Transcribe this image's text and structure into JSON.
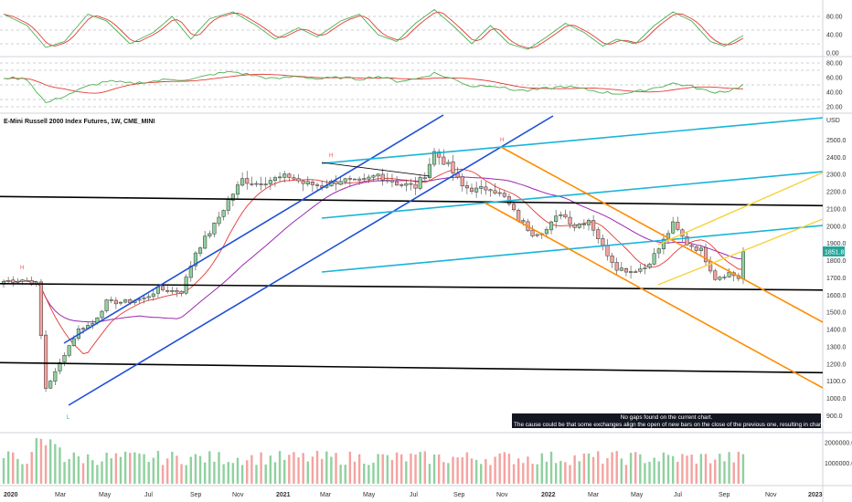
{
  "title": "E-Mini Russell 2000 Index Futures, 1W, CME_MINI",
  "currency": "USD",
  "last_price": "1851.8",
  "notice": {
    "line1": "No gaps found on the current chart.",
    "line2": "The cause could be that some exchanges align the open of new bars on the close of the previous one, resulting in charts with no gaps."
  },
  "annotations": [
    "H",
    "H",
    "H",
    "L"
  ],
  "colors": {
    "up": "#26a69a",
    "up_bar": "#8fd19e",
    "down": "#ef5350",
    "down_bar": "#f4a3a0",
    "ma_fast": "#e53935",
    "ma_slow": "#9c27b0",
    "channel_up": "#1e4fd8",
    "channel_down": "#ff8c00",
    "trend_cyan": "#18b4d8",
    "wedge_yellow": "#f6d33c",
    "horizontal": "#000000",
    "stoch_k": "#4caf50",
    "stoch_d": "#e53935"
  },
  "chart_data": [
    {
      "type": "candlestick",
      "x_tick_labels": [
        "2020",
        "Mar",
        "May",
        "Jul",
        "Sep",
        "Nov",
        "2021",
        "Mar",
        "May",
        "Jul",
        "Sep",
        "Nov",
        "2022",
        "Mar",
        "May",
        "Jul",
        "Sep",
        "Nov",
        "2023"
      ],
      "y_tick_labels": [
        "2500.0",
        "2400.0",
        "2300.0",
        "2200.0",
        "2100.0",
        "2000.0",
        "1900.0",
        "1800.0",
        "1700.0",
        "1600.0",
        "1500.0",
        "1400.0",
        "1300.0",
        "1200.0",
        "1100.0",
        "1000.0",
        "900.0"
      ],
      "ylim": [
        865,
        2545
      ],
      "close_anchors": [
        [
          0,
          1680
        ],
        [
          4,
          1690
        ],
        [
          7,
          1665
        ],
        [
          9,
          1060
        ],
        [
          11,
          1150
        ],
        [
          13,
          1260
        ],
        [
          16,
          1400
        ],
        [
          19,
          1435
        ],
        [
          22,
          1560
        ],
        [
          26,
          1560
        ],
        [
          30,
          1580
        ],
        [
          33,
          1635
        ],
        [
          38,
          1620
        ],
        [
          41,
          1850
        ],
        [
          45,
          2005
        ],
        [
          48,
          2150
        ],
        [
          51,
          2270
        ],
        [
          54,
          2250
        ],
        [
          57,
          2270
        ],
        [
          61,
          2290
        ],
        [
          64,
          2250
        ],
        [
          68,
          2235
        ],
        [
          72,
          2270
        ],
        [
          76,
          2250
        ],
        [
          80,
          2300
        ],
        [
          84,
          2250
        ],
        [
          88,
          2230
        ],
        [
          90,
          2300
        ],
        [
          92,
          2430
        ],
        [
          95,
          2350
        ],
        [
          98,
          2230
        ],
        [
          101,
          2210
        ],
        [
          104,
          2225
        ],
        [
          107,
          2165
        ],
        [
          110,
          2040
        ],
        [
          113,
          1960
        ],
        [
          116,
          1980
        ],
        [
          119,
          2080
        ],
        [
          122,
          2000
        ],
        [
          125,
          2040
        ],
        [
          128,
          1880
        ],
        [
          131,
          1760
        ],
        [
          134,
          1740
        ],
        [
          137,
          1760
        ],
        [
          140,
          1870
        ],
        [
          143,
          2010
        ],
        [
          146,
          1900
        ],
        [
          149,
          1860
        ],
        [
          152,
          1700
        ],
        [
          155,
          1730
        ],
        [
          157,
          1700
        ],
        [
          158,
          1851.8
        ]
      ],
      "horizontal_levels": [
        2130,
        1640,
        1160
      ]
    },
    {
      "type": "line",
      "name": "stochastic",
      "y_tick_labels": [
        "80.00",
        "40.00",
        "0.00"
      ],
      "ylim": [
        0,
        100
      ],
      "levels": [
        80,
        50,
        20
      ],
      "k_anchors": [
        [
          0,
          85
        ],
        [
          5,
          60
        ],
        [
          9,
          12
        ],
        [
          13,
          25
        ],
        [
          18,
          85
        ],
        [
          22,
          70
        ],
        [
          27,
          20
        ],
        [
          32,
          45
        ],
        [
          36,
          80
        ],
        [
          40,
          30
        ],
        [
          44,
          75
        ],
        [
          49,
          90
        ],
        [
          54,
          60
        ],
        [
          58,
          30
        ],
        [
          63,
          55
        ],
        [
          67,
          35
        ],
        [
          72,
          70
        ],
        [
          76,
          85
        ],
        [
          80,
          40
        ],
        [
          84,
          25
        ],
        [
          88,
          65
        ],
        [
          92,
          95
        ],
        [
          96,
          60
        ],
        [
          100,
          20
        ],
        [
          104,
          60
        ],
        [
          108,
          20
        ],
        [
          112,
          8
        ],
        [
          116,
          35
        ],
        [
          120,
          65
        ],
        [
          124,
          45
        ],
        [
          128,
          15
        ],
        [
          131,
          30
        ],
        [
          135,
          20
        ],
        [
          139,
          60
        ],
        [
          143,
          90
        ],
        [
          147,
          70
        ],
        [
          151,
          25
        ],
        [
          154,
          15
        ],
        [
          158,
          38
        ]
      ]
    },
    {
      "type": "line",
      "name": "rsi",
      "y_tick_labels": [
        "80.00",
        "60.00",
        "40.00",
        "20.00"
      ],
      "ylim": [
        15,
        85
      ],
      "levels": [
        80,
        70,
        50,
        30,
        20
      ],
      "rsi_anchors": [
        [
          0,
          60
        ],
        [
          5,
          58
        ],
        [
          9,
          25
        ],
        [
          13,
          35
        ],
        [
          18,
          48
        ],
        [
          22,
          55
        ],
        [
          27,
          52
        ],
        [
          32,
          55
        ],
        [
          36,
          58
        ],
        [
          40,
          57
        ],
        [
          45,
          65
        ],
        [
          49,
          68
        ],
        [
          54,
          62
        ],
        [
          58,
          58
        ],
        [
          63,
          62
        ],
        [
          67,
          58
        ],
        [
          72,
          60
        ],
        [
          76,
          58
        ],
        [
          80,
          62
        ],
        [
          84,
          55
        ],
        [
          88,
          58
        ],
        [
          92,
          66
        ],
        [
          96,
          58
        ],
        [
          100,
          48
        ],
        [
          104,
          50
        ],
        [
          108,
          44
        ],
        [
          112,
          42
        ],
        [
          116,
          45
        ],
        [
          120,
          48
        ],
        [
          124,
          44
        ],
        [
          128,
          40
        ],
        [
          131,
          38
        ],
        [
          135,
          40
        ],
        [
          139,
          46
        ],
        [
          143,
          52
        ],
        [
          147,
          48
        ],
        [
          151,
          40
        ],
        [
          155,
          42
        ],
        [
          158,
          50
        ]
      ]
    },
    {
      "type": "bar",
      "name": "volume",
      "y_tick_labels": [
        "2000000.0",
        "1000000.0"
      ],
      "ylim": [
        0,
        2300000
      ]
    }
  ]
}
